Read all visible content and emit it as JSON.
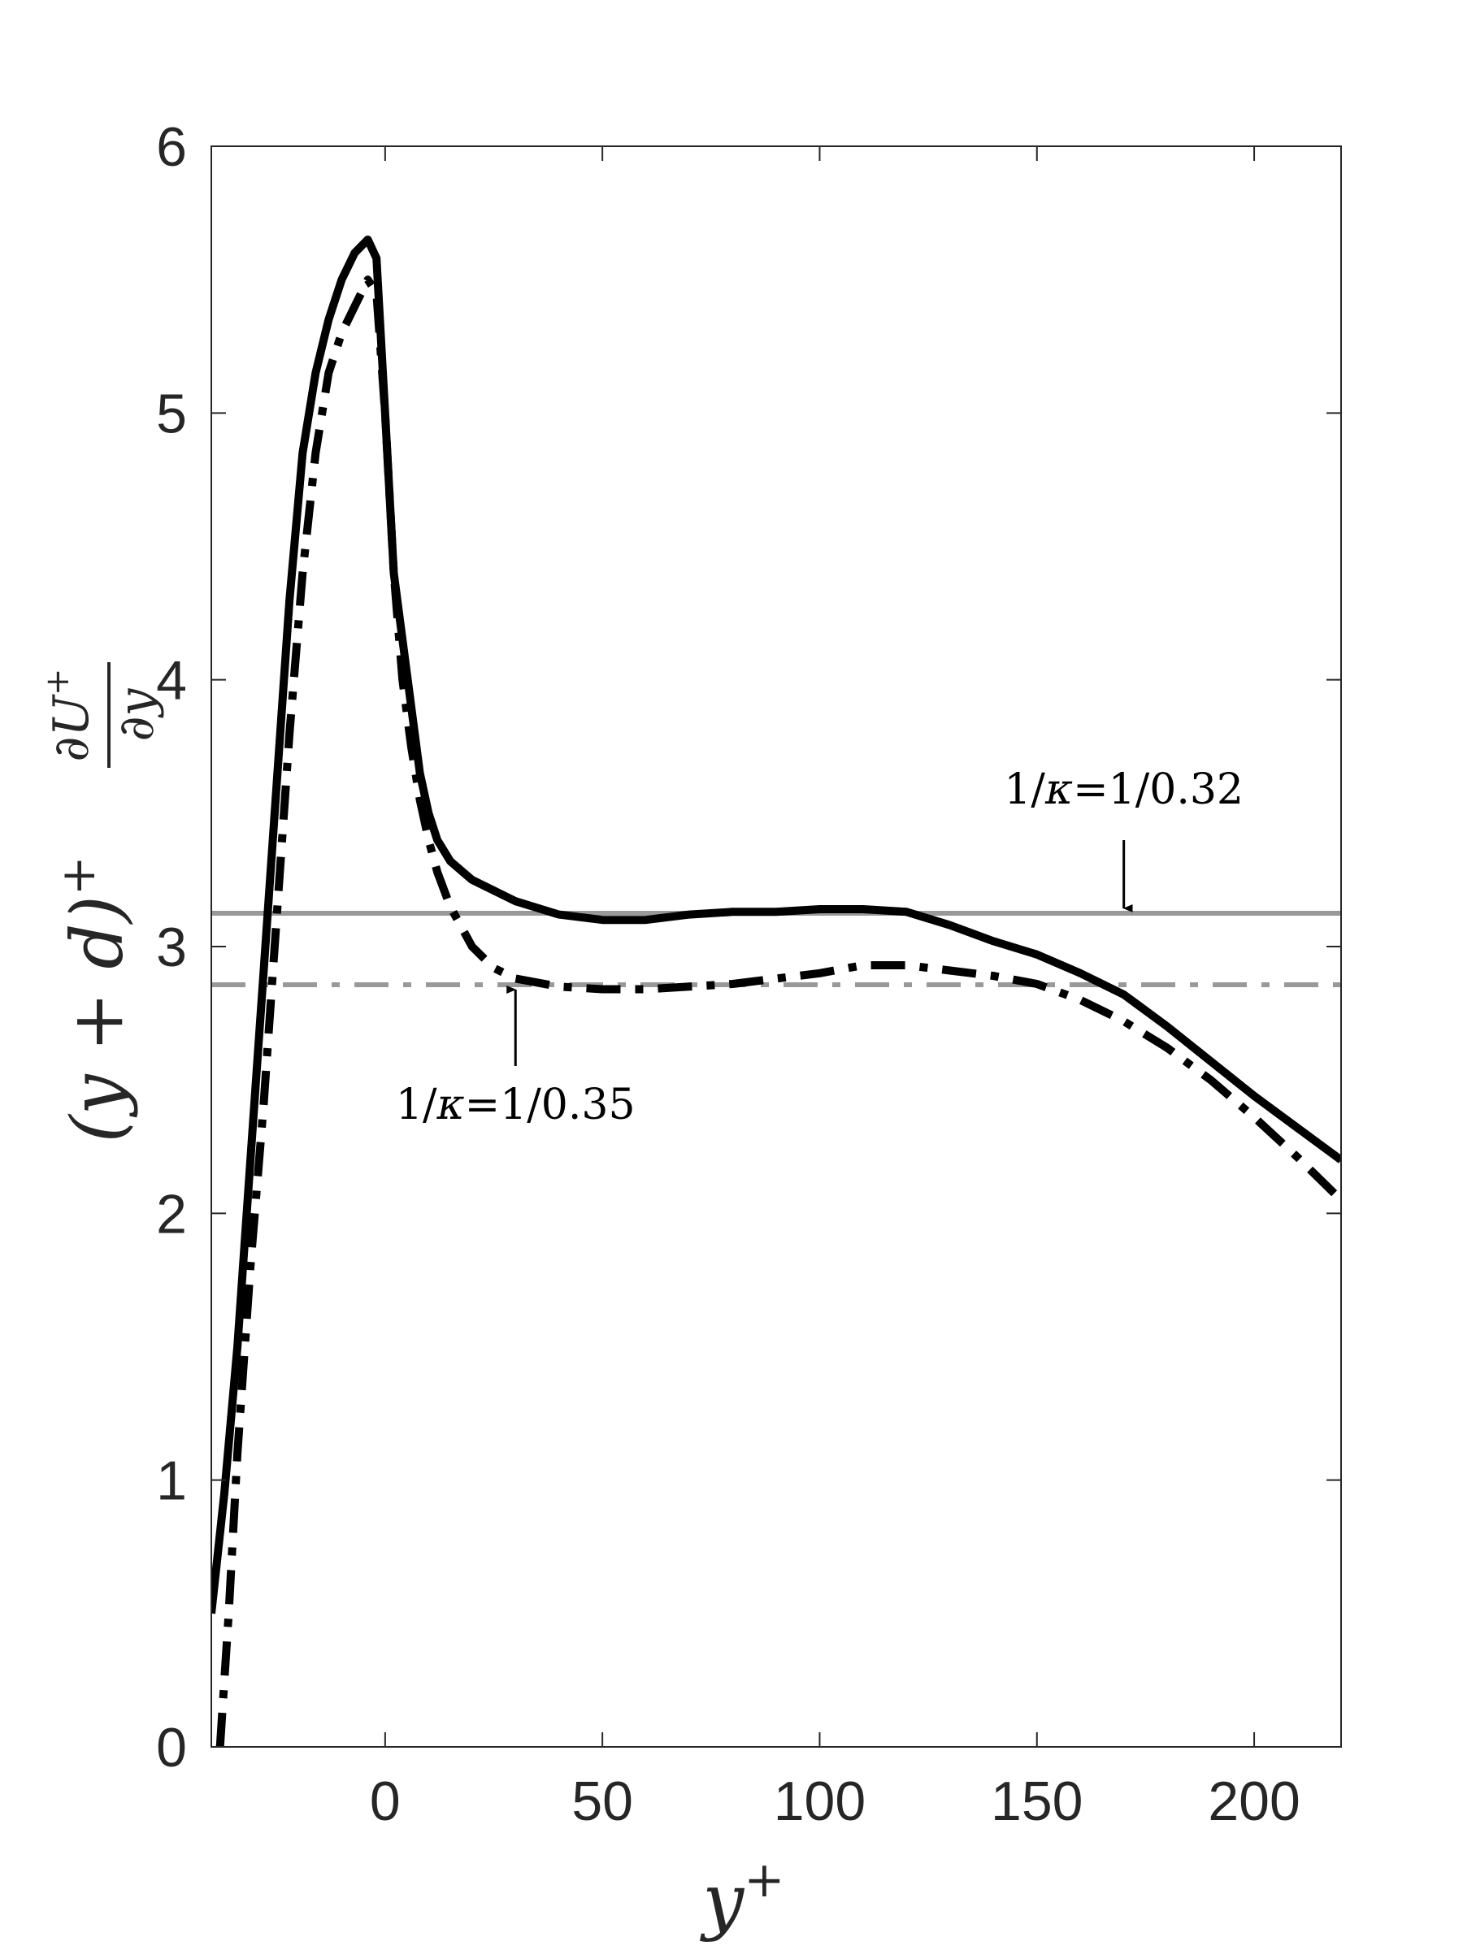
{
  "chart_data": {
    "type": "line",
    "title": "",
    "xlabel": "y",
    "xlabel_superscript": "+",
    "ylabel": {
      "prefix": "(y + d)",
      "prefix_superscript": "+",
      "fraction_numerator": "∂U",
      "fraction_numerator_superscript": "+",
      "fraction_denominator": "∂y"
    },
    "xlim": [
      -40,
      220
    ],
    "ylim": [
      0,
      6
    ],
    "grid": false,
    "box": true,
    "x_ticks": [
      0,
      50,
      100,
      150,
      200
    ],
    "x_tick_labels": [
      "0",
      "50",
      "100",
      "150",
      "200"
    ],
    "y_ticks": [
      0,
      1,
      2,
      3,
      4,
      5,
      6
    ],
    "y_tick_labels": [
      "0",
      "1",
      "2",
      "3",
      "4",
      "5",
      "6"
    ],
    "series": [
      {
        "style": "solid",
        "color": "#000000",
        "x": [
          -40,
          -37,
          -34,
          -31,
          -28,
          -25,
          -22,
          -19,
          -16,
          -13,
          -10,
          -7,
          -4,
          -2,
          0,
          2,
          4,
          6,
          8,
          10,
          12,
          15,
          20,
          25,
          30,
          40,
          50,
          60,
          70,
          80,
          90,
          100,
          110,
          120,
          130,
          140,
          150,
          160,
          170,
          180,
          190,
          200,
          210,
          220
        ],
        "y": [
          0.5,
          0.95,
          1.5,
          2.2,
          2.9,
          3.6,
          4.3,
          4.85,
          5.15,
          5.35,
          5.5,
          5.6,
          5.65,
          5.58,
          5.0,
          4.4,
          4.15,
          3.9,
          3.65,
          3.5,
          3.4,
          3.32,
          3.25,
          3.21,
          3.17,
          3.12,
          3.1,
          3.1,
          3.12,
          3.13,
          3.13,
          3.14,
          3.14,
          3.13,
          3.08,
          3.02,
          2.97,
          2.9,
          2.82,
          2.7,
          2.57,
          2.44,
          2.32,
          2.2
        ]
      },
      {
        "style": "dash-dot",
        "color": "#000000",
        "x": [
          -38,
          -36,
          -34,
          -31,
          -28,
          -25,
          -22,
          -19,
          -16,
          -13,
          -10,
          -7,
          -4,
          -2,
          0,
          2,
          4,
          6,
          8,
          10,
          12,
          15,
          20,
          25,
          30,
          40,
          50,
          60,
          70,
          80,
          90,
          100,
          110,
          120,
          130,
          140,
          150,
          160,
          170,
          180,
          190,
          200,
          210,
          220
        ],
        "y": [
          0.0,
          0.5,
          1.1,
          1.8,
          2.4,
          3.1,
          3.8,
          4.4,
          4.85,
          5.15,
          5.3,
          5.4,
          5.5,
          5.45,
          5.0,
          4.4,
          4.0,
          3.75,
          3.55,
          3.4,
          3.28,
          3.15,
          3.0,
          2.92,
          2.88,
          2.85,
          2.84,
          2.84,
          2.85,
          2.86,
          2.88,
          2.9,
          2.93,
          2.93,
          2.91,
          2.89,
          2.86,
          2.8,
          2.72,
          2.62,
          2.5,
          2.36,
          2.21,
          2.05
        ]
      }
    ],
    "reference_lines": [
      {
        "y": 3.125,
        "style": "solid",
        "color": "#999999",
        "label_prefix": "1/",
        "label_symbol": "κ",
        "label_suffix": "=1/0.32",
        "arrow_x": 170
      },
      {
        "y": 2.857,
        "style": "dash-dot",
        "color": "#999999",
        "label_prefix": "1/",
        "label_symbol": "κ",
        "label_suffix": "=1/0.35",
        "arrow_x": 30
      }
    ]
  }
}
